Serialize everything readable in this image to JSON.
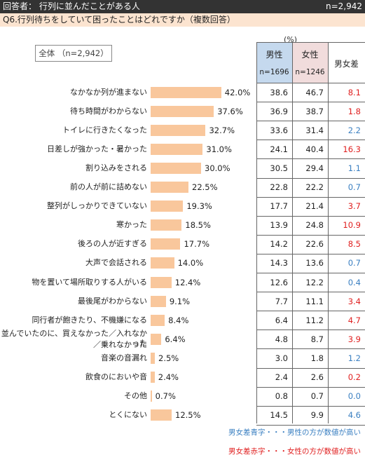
{
  "header": {
    "respondents_label": "回答者： 行列に並んだことがある人",
    "n_label": "n=2,942"
  },
  "question": "Q6.行列待ちをしていて困ったことはどれですか（複数回答）",
  "total_label": "全体 （n=2,942）",
  "unit_label": "(%)",
  "columns": {
    "male": {
      "title": "男性",
      "count": "n=1696"
    },
    "female": {
      "title": "女性",
      "count": "n=1246"
    },
    "diff": {
      "title": "男女差"
    }
  },
  "colors": {
    "bar": "#f9c79c",
    "male_bg": "#c5d9ee",
    "female_bg": "#f1dcdc",
    "diff_blue": "#3a7fc1",
    "diff_red": "#e02020"
  },
  "notes": {
    "blue": "男女差青字・・・男性の方が数値が高い",
    "red": "男女差赤字・・・女性の方が数値が高い"
  },
  "chart_data": {
    "type": "bar",
    "orientation": "horizontal",
    "categories": [
      "なかなか列が進まない",
      "待ち時間がわからない",
      "トイレに行きたくなった",
      "日差しが強かった・暑かった",
      "割り込みをされる",
      "前の人が前に詰めない",
      "整列がしっかりできていない",
      "寒かった",
      "後ろの人が近すぎる",
      "大声で会話される",
      "物を置いて場所取りする人がいる",
      "最後尾がわからない",
      "同行者が飽きたり、不機嫌になる",
      "並んでいたのに、買えなかった／入れなかった／乗れなかった",
      "音楽の音漏れ",
      "飲食のにおいや音",
      "その他",
      "とくにない"
    ],
    "label_lines": [
      [
        "なかなか列が進まない"
      ],
      [
        "待ち時間がわからない"
      ],
      [
        "トイレに行きたくなった"
      ],
      [
        "日差しが強かった・暑かった"
      ],
      [
        "割り込みをされる"
      ],
      [
        "前の人が前に詰めない"
      ],
      [
        "整列がしっかりできていない"
      ],
      [
        "寒かった"
      ],
      [
        "後ろの人が近すぎる"
      ],
      [
        "大声で会話される"
      ],
      [
        "物を置いて場所取りする人がいる"
      ],
      [
        "最後尾がわからない"
      ],
      [
        "同行者が飽きたり、不機嫌になる"
      ],
      [
        "並んでいたのに、買えなかった／入れなかった",
        "／乗れなかった"
      ],
      [
        "音楽の音漏れ"
      ],
      [
        "飲食のにおいや音"
      ],
      [
        "その他"
      ],
      [
        "とくにない"
      ]
    ],
    "values": [
      42.0,
      37.6,
      32.7,
      31.0,
      30.0,
      22.5,
      19.3,
      18.5,
      17.7,
      14.0,
      12.4,
      9.1,
      8.4,
      6.4,
      2.5,
      2.4,
      0.7,
      12.5
    ],
    "value_labels": [
      "42.0%",
      "37.6%",
      "32.7%",
      "31.0%",
      "30.0%",
      "22.5%",
      "19.3%",
      "18.5%",
      "17.7%",
      "14.0%",
      "12.4%",
      "9.1%",
      "8.4%",
      "6.4%",
      "2.5%",
      "2.4%",
      "0.7%",
      "12.5%"
    ],
    "xlim": [
      0,
      50
    ],
    "table": {
      "male": [
        "38.6",
        "36.9",
        "33.6",
        "24.1",
        "30.5",
        "22.8",
        "17.7",
        "13.9",
        "14.2",
        "14.3",
        "12.6",
        "7.7",
        "6.4",
        "4.8",
        "3.0",
        "2.4",
        "0.8",
        "14.5"
      ],
      "female": [
        "46.7",
        "38.7",
        "31.4",
        "40.4",
        "29.4",
        "22.2",
        "21.4",
        "24.8",
        "22.6",
        "13.6",
        "12.2",
        "11.1",
        "11.2",
        "8.7",
        "1.8",
        "2.6",
        "0.7",
        "9.9"
      ],
      "diff": [
        "8.1",
        "1.8",
        "2.2",
        "16.3",
        "1.1",
        "0.7",
        "3.7",
        "10.9",
        "8.5",
        "0.7",
        "0.4",
        "3.4",
        "4.7",
        "3.9",
        "1.2",
        "0.2",
        "0.0",
        "4.6"
      ],
      "diff_color": [
        "red",
        "red",
        "blue",
        "red",
        "blue",
        "blue",
        "red",
        "red",
        "red",
        "blue",
        "blue",
        "red",
        "red",
        "red",
        "blue",
        "red",
        "blue",
        "blue"
      ]
    }
  }
}
